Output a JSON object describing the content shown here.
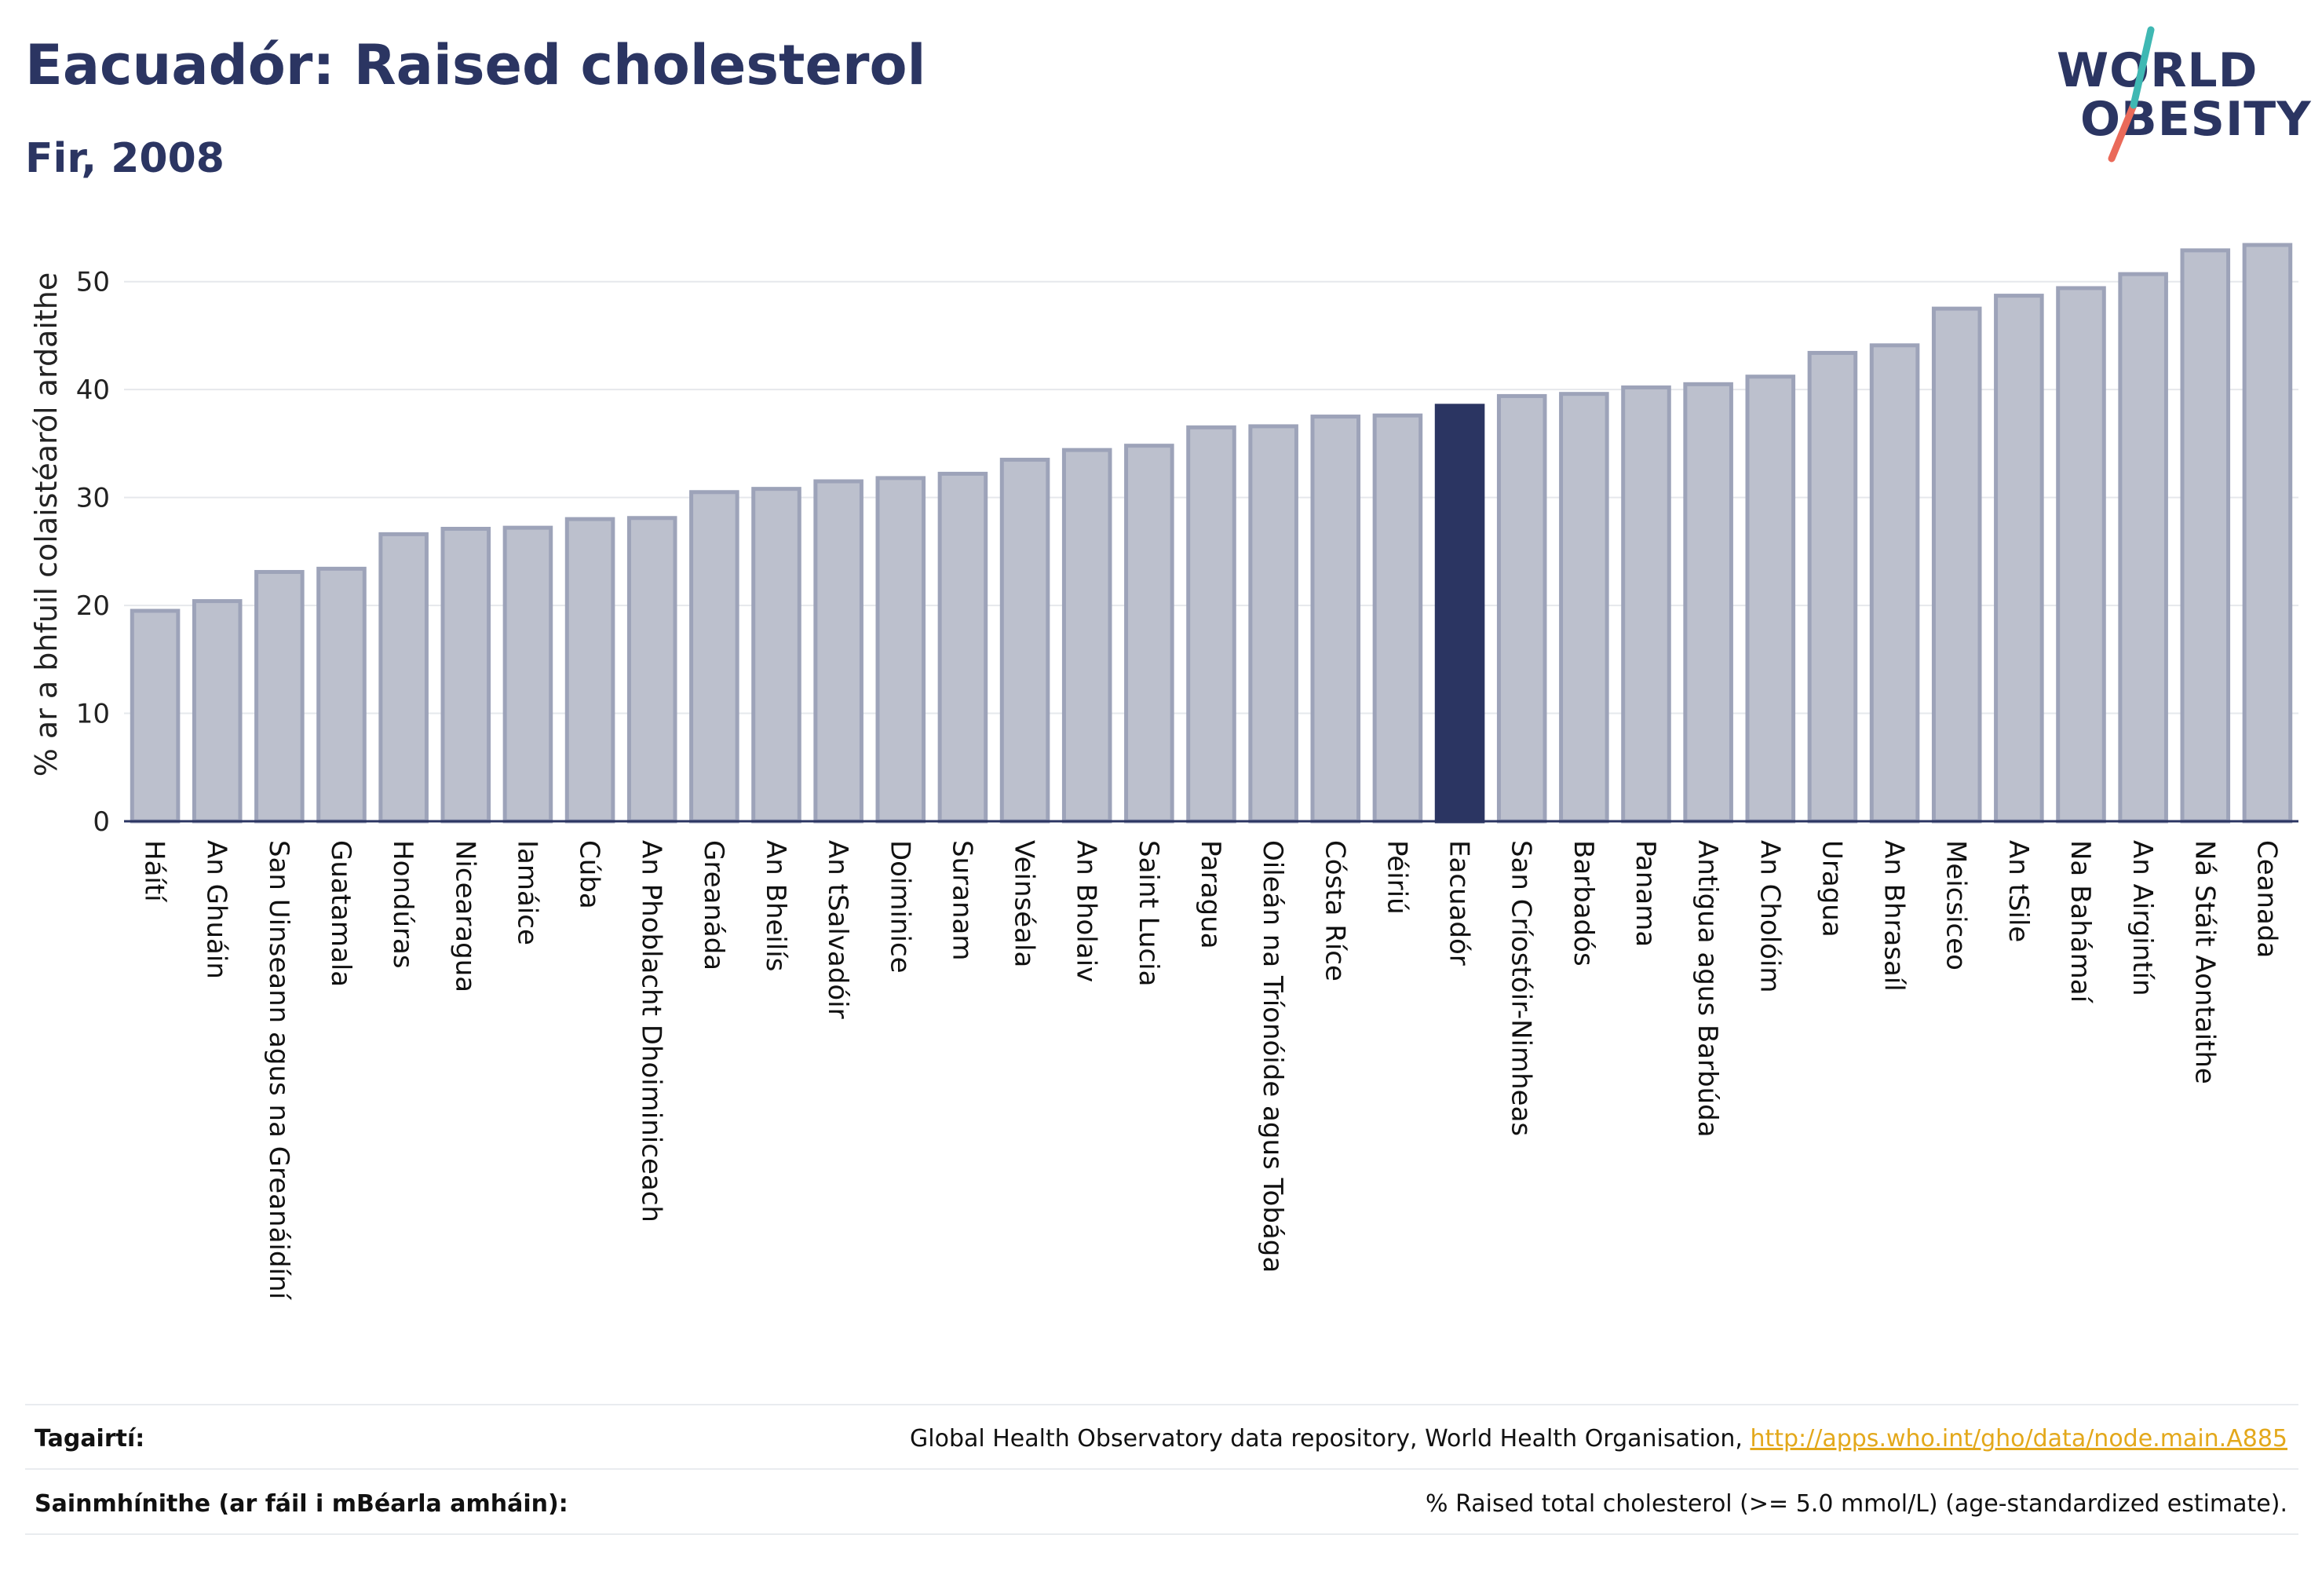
{
  "header": {
    "title": "Eacuadór: Raised cholesterol",
    "subtitle": "Fir, 2008"
  },
  "logo": {
    "line1": "WORLD",
    "line2": "OBESITY"
  },
  "colors": {
    "highlight": "#2b3562",
    "bar_fill": "#bcc0cd",
    "bar_stroke": "#9da3b9",
    "accent_teal": "#3fb8b3",
    "accent_coral": "#ea6a5a"
  },
  "chart_data": {
    "type": "bar",
    "ylabel": "% ar a bhfuil colaistéaról ardaithe",
    "ylim": [
      0,
      55
    ],
    "yticks": [
      0,
      10,
      20,
      30,
      40,
      50
    ],
    "grid": true,
    "highlight": "Eacuadór",
    "categories": [
      "Háítí",
      "An Ghuáin",
      "San Uinseann agus na Greanáidíní",
      "Guatamala",
      "Hondúras",
      "Nicearagua",
      "Iamáice",
      "Cúba",
      "An Phoblacht Dhoiminiceach",
      "Greanáda",
      "An Bheilís",
      "An tSalvadóir",
      "Doiminice",
      "Suranam",
      "Veinséala",
      "An Bholaiv",
      "Saint Lucia",
      "Paragua",
      "Oileán na Tríonóide agus Tobága",
      "Cósta Ríce",
      "Péiriú",
      "Eacuadór",
      "San Críostóir-Nimheas",
      "Barbadós",
      "Panama",
      "Antigua agus Barbúda",
      "An Cholóim",
      "Uragua",
      "An Bhrasaíl",
      "Meicsiceo",
      "An tSile",
      "Na Bahámaí",
      "An Airgintín",
      "Ná Stáit Aontaithe",
      "Ceanada"
    ],
    "values": [
      19.5,
      20.4,
      23.1,
      23.4,
      26.6,
      27.1,
      27.2,
      28.0,
      28.1,
      30.5,
      30.8,
      31.5,
      31.8,
      32.2,
      33.5,
      34.4,
      34.8,
      36.5,
      36.6,
      37.5,
      37.6,
      38.5,
      39.4,
      39.6,
      40.2,
      40.5,
      41.2,
      43.4,
      44.1,
      47.5,
      48.7,
      49.4,
      50.7,
      52.9,
      53.4
    ]
  },
  "footer": {
    "references_label": "Tagairtí:",
    "references_text": "Global Health Observatory data repository, World Health Organisation, ",
    "references_link": "http://apps.who.int/gho/data/node.main.A885",
    "definitions_label": "Sainmhínithe (ar fáil i mBéarla amháin):",
    "definitions_text": "% Raised total cholesterol (>= 5.0 mmol/L) (age-standardized estimate)."
  }
}
